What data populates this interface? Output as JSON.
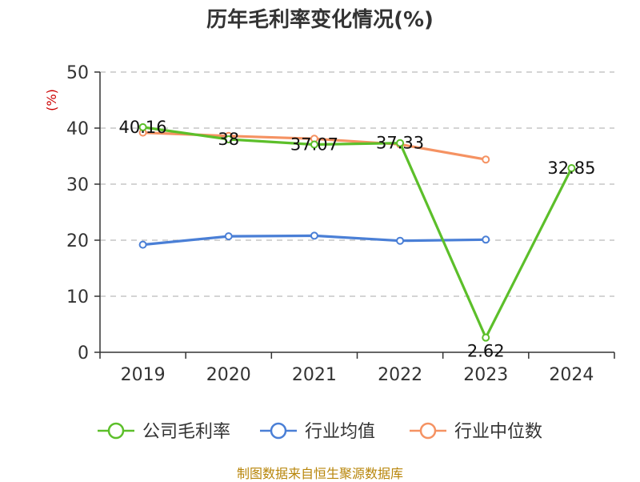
{
  "chart_data": {
    "type": "line",
    "title": "历年毛利率变化情况(%)",
    "ylabel": "(%)",
    "categories": [
      "2019",
      "2020",
      "2021",
      "2022",
      "2023",
      "2024"
    ],
    "ylim": [
      0,
      50
    ],
    "yticks": [
      0,
      10,
      20,
      30,
      40,
      50
    ],
    "grid": "horizontal dashed",
    "legend_position": "bottom",
    "series": [
      {
        "name": "公司毛利率",
        "color": "#5cbf2a",
        "values": [
          40.16,
          38,
          37.07,
          37.33,
          2.62,
          32.85
        ],
        "labels": [
          "40.16",
          "38",
          "37.07",
          "37.33",
          "2.62",
          "32.85"
        ]
      },
      {
        "name": "行业均值",
        "color": "#4a7fd6",
        "values": [
          19.2,
          20.7,
          20.8,
          19.9,
          20.1,
          null
        ]
      },
      {
        "name": "行业中位数",
        "color": "#f59262",
        "values": [
          39.2,
          38.6,
          38.1,
          37.1,
          34.4,
          null
        ]
      }
    ]
  },
  "source": "制图数据来自恒生聚源数据库"
}
